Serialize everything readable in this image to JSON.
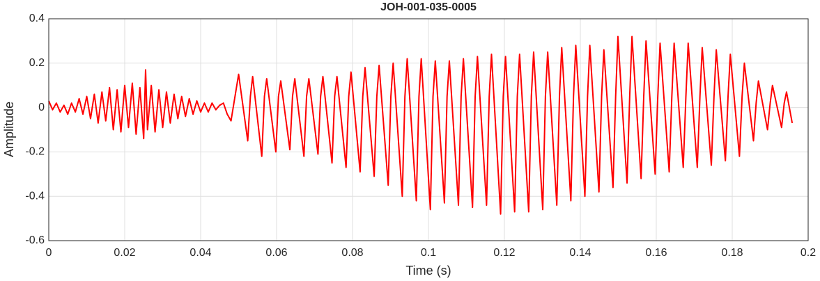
{
  "chart_data": {
    "type": "line",
    "title": "JOH-001-035-0005",
    "x_label": "Time (s)",
    "y_label": "Amplitude",
    "color": "#ff0000",
    "grid": true,
    "xlim": [
      0,
      0.2
    ],
    "xticks": [
      0,
      0.02,
      0.04,
      0.06,
      0.08,
      0.1,
      0.12,
      0.14,
      0.16,
      0.18,
      0.2
    ],
    "ylim": [
      -0.6,
      0.4
    ],
    "yticks": [
      -0.6,
      -0.4,
      -0.2,
      0,
      0.2,
      0.4
    ],
    "x": [
      0,
      0.001,
      0.002,
      0.003,
      0.004,
      0.005,
      0.006,
      0.007,
      0.008,
      0.009,
      0.01,
      0.011,
      0.012,
      0.013,
      0.014,
      0.015,
      0.016,
      0.017,
      0.018,
      0.019,
      0.02,
      0.021,
      0.022,
      0.023,
      0.024,
      0.025,
      0.0255,
      0.026,
      0.027,
      0.028,
      0.029,
      0.03,
      0.031,
      0.032,
      0.033,
      0.034,
      0.035,
      0.036,
      0.037,
      0.038,
      0.039,
      0.04,
      0.041,
      0.042,
      0.043,
      0.044,
      0.045,
      0.046,
      0.047,
      0.048,
      0.05,
      0.0524,
      0.0531,
      0.0537,
      0.0561,
      0.0568,
      0.0574,
      0.0598,
      0.0605,
      0.0611,
      0.0635,
      0.0642,
      0.0648,
      0.0672,
      0.0679,
      0.0685,
      0.0709,
      0.0716,
      0.0722,
      0.0746,
      0.0753,
      0.0759,
      0.0783,
      0.079,
      0.0796,
      0.082,
      0.0827,
      0.0833,
      0.0857,
      0.0864,
      0.087,
      0.0894,
      0.0901,
      0.0907,
      0.0931,
      0.0938,
      0.0944,
      0.0968,
      0.0975,
      0.0981,
      0.1005,
      0.1012,
      0.1018,
      0.1042,
      0.1049,
      0.1055,
      0.1079,
      0.1086,
      0.1092,
      0.1116,
      0.1123,
      0.1129,
      0.1153,
      0.116,
      0.1166,
      0.119,
      0.1197,
      0.1203,
      0.1227,
      0.1234,
      0.124,
      0.1264,
      0.1271,
      0.1277,
      0.1301,
      0.1308,
      0.1314,
      0.1338,
      0.1345,
      0.1351,
      0.1375,
      0.1382,
      0.1388,
      0.1412,
      0.1419,
      0.1425,
      0.1449,
      0.1456,
      0.1462,
      0.1486,
      0.1493,
      0.1499,
      0.1523,
      0.153,
      0.1536,
      0.156,
      0.1567,
      0.1573,
      0.1597,
      0.1604,
      0.161,
      0.1634,
      0.1641,
      0.1647,
      0.1671,
      0.1678,
      0.1684,
      0.1708,
      0.1715,
      0.1721,
      0.1745,
      0.1752,
      0.1758,
      0.1782,
      0.1789,
      0.1795,
      0.1819,
      0.1826,
      0.1832,
      0.1856,
      0.1863,
      0.1869,
      0.1893,
      0.19,
      0.1906,
      0.193,
      0.1937,
      0.1943,
      0.1958
    ],
    "values": [
      0.03,
      -0.01,
      0.02,
      -0.02,
      0.01,
      -0.03,
      0.02,
      -0.02,
      0.04,
      -0.03,
      0.05,
      -0.05,
      0.06,
      -0.07,
      0.07,
      -0.06,
      0.09,
      -0.1,
      0.08,
      -0.11,
      0.1,
      -0.09,
      0.11,
      -0.12,
      0.09,
      -0.14,
      0.17,
      -0.1,
      0.1,
      -0.11,
      0.08,
      -0.09,
      0.07,
      -0.07,
      0.06,
      -0.05,
      0.05,
      -0.04,
      0.04,
      -0.03,
      0.03,
      -0.02,
      0.02,
      -0.02,
      0.02,
      -0.01,
      0.01,
      0.02,
      -0.03,
      -0.06,
      0.15,
      -0.15,
      0.05,
      0.14,
      -0.22,
      0.05,
      0.13,
      -0.2,
      0.05,
      0.12,
      -0.19,
      0.05,
      0.13,
      -0.22,
      0.05,
      0.13,
      -0.21,
      0.05,
      0.14,
      -0.25,
      0.05,
      0.14,
      -0.27,
      0.05,
      0.16,
      -0.29,
      0.05,
      0.18,
      -0.31,
      0.05,
      0.19,
      -0.35,
      0.05,
      0.2,
      -0.4,
      0.05,
      0.22,
      -0.42,
      0.05,
      0.22,
      -0.46,
      0.05,
      0.21,
      -0.43,
      0.05,
      0.21,
      -0.44,
      0.05,
      0.22,
      -0.45,
      0.05,
      0.23,
      -0.44,
      0.05,
      0.24,
      -0.48,
      0.05,
      0.23,
      -0.47,
      0.05,
      0.24,
      -0.47,
      0.05,
      0.25,
      -0.46,
      0.05,
      0.25,
      -0.44,
      0.05,
      0.27,
      -0.42,
      0.05,
      0.28,
      -0.4,
      0.05,
      0.28,
      -0.38,
      0.05,
      0.26,
      -0.36,
      0.05,
      0.32,
      -0.34,
      0.05,
      0.32,
      -0.32,
      0.05,
      0.3,
      -0.3,
      0.05,
      0.29,
      -0.29,
      0.05,
      0.29,
      -0.27,
      0.05,
      0.29,
      -0.27,
      0.05,
      0.27,
      -0.26,
      0.05,
      0.26,
      -0.24,
      0.05,
      0.24,
      -0.22,
      0.05,
      0.2,
      -0.15,
      0.02,
      0.12,
      -0.1,
      0.02,
      0.1,
      -0.09,
      0.02,
      0.07,
      -0.07
    ]
  }
}
